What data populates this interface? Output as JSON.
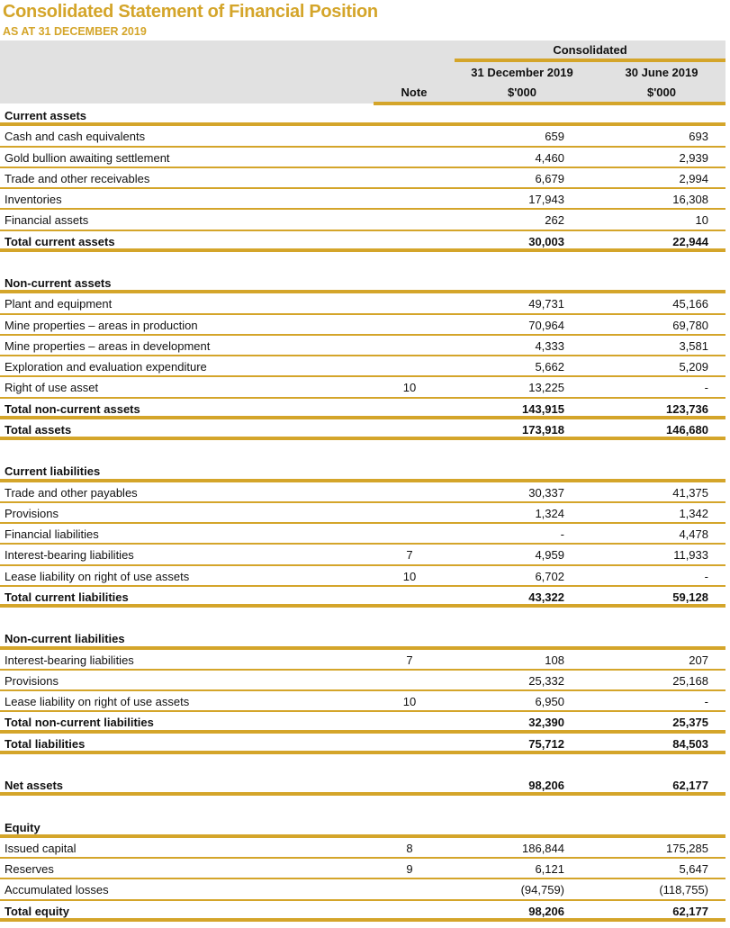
{
  "title": "Consolidated Statement of Financial Position",
  "subtitle": "AS AT 31 DECEMBER 2019",
  "colors": {
    "accent": "#D4A52A",
    "header_bg": "#e1e1e1"
  },
  "header": {
    "group": "Consolidated",
    "note": "Note",
    "col1_date": "31 December 2019",
    "col1_unit": "$'000",
    "col2_date": "30 June 2019",
    "col2_unit": "$'000"
  },
  "rows": [
    {
      "type": "heading",
      "label": "Current assets"
    },
    {
      "type": "item",
      "label": "Cash and cash equivalents",
      "note": "",
      "v1": "659",
      "v2": "693"
    },
    {
      "type": "item",
      "label": "Gold bullion awaiting settlement",
      "note": "",
      "v1": "4,460",
      "v2": "2,939"
    },
    {
      "type": "item",
      "label": "Trade and other receivables",
      "note": "",
      "v1": "6,679",
      "v2": "2,994"
    },
    {
      "type": "item",
      "label": "Inventories",
      "note": "",
      "v1": "17,943",
      "v2": "16,308"
    },
    {
      "type": "item",
      "label": "Financial assets",
      "note": "",
      "v1": "262",
      "v2": "10"
    },
    {
      "type": "total",
      "label": "Total current assets",
      "note": "",
      "v1": "30,003",
      "v2": "22,944"
    },
    {
      "type": "spacer"
    },
    {
      "type": "heading",
      "label": "Non-current assets"
    },
    {
      "type": "item",
      "label": "Plant and equipment",
      "note": "",
      "v1": "49,731",
      "v2": "45,166"
    },
    {
      "type": "item",
      "label": "Mine properties – areas in production",
      "note": "",
      "v1": "70,964",
      "v2": "69,780"
    },
    {
      "type": "item",
      "label": "Mine properties – areas in development",
      "note": "",
      "v1": "4,333",
      "v2": "3,581"
    },
    {
      "type": "item",
      "label": "Exploration and evaluation expenditure",
      "note": "",
      "v1": "5,662",
      "v2": "5,209"
    },
    {
      "type": "item",
      "label": "Right of use asset",
      "note": "10",
      "v1": "13,225",
      "v2": "-"
    },
    {
      "type": "total",
      "label": "Total non-current assets",
      "note": "",
      "v1": "143,915",
      "v2": "123,736"
    },
    {
      "type": "total",
      "label": "Total assets",
      "note": "",
      "v1": "173,918",
      "v2": "146,680"
    },
    {
      "type": "spacer"
    },
    {
      "type": "heading",
      "label": "Current liabilities"
    },
    {
      "type": "item",
      "label": "Trade and other payables",
      "note": "",
      "v1": "30,337",
      "v2": "41,375"
    },
    {
      "type": "item",
      "label": "Provisions",
      "note": "",
      "v1": "1,324",
      "v2": "1,342"
    },
    {
      "type": "item",
      "label": "Financial liabilities",
      "note": "",
      "v1": "-",
      "v2": "4,478"
    },
    {
      "type": "item",
      "label": "Interest-bearing liabilities",
      "note": "7",
      "v1": "4,959",
      "v2": "11,933"
    },
    {
      "type": "item",
      "label": "Lease liability on right of use assets",
      "note": "10",
      "v1": "6,702",
      "v2": "-"
    },
    {
      "type": "total",
      "label": "Total current liabilities",
      "note": "",
      "v1": "43,322",
      "v2": "59,128"
    },
    {
      "type": "spacer"
    },
    {
      "type": "heading",
      "label": "Non-current liabilities"
    },
    {
      "type": "item",
      "label": "Interest-bearing liabilities",
      "note": "7",
      "v1": "108",
      "v2": "207"
    },
    {
      "type": "item",
      "label": "Provisions",
      "note": "",
      "v1": "25,332",
      "v2": "25,168"
    },
    {
      "type": "item",
      "label": "Lease liability on right of use assets",
      "note": "10",
      "v1": "6,950",
      "v2": "-"
    },
    {
      "type": "total",
      "label": "Total non-current liabilities",
      "note": "",
      "v1": "32,390",
      "v2": "25,375"
    },
    {
      "type": "total",
      "label": "Total liabilities",
      "note": "",
      "v1": "75,712",
      "v2": "84,503"
    },
    {
      "type": "spacer"
    },
    {
      "type": "total",
      "label": "Net assets",
      "note": "",
      "v1": "98,206",
      "v2": "62,177"
    },
    {
      "type": "spacer"
    },
    {
      "type": "heading",
      "label": "Equity"
    },
    {
      "type": "item",
      "label": "Issued capital",
      "note": "8",
      "v1": "186,844",
      "v2": "175,285"
    },
    {
      "type": "item",
      "label": "Reserves",
      "note": "9",
      "v1": "6,121",
      "v2": "5,647"
    },
    {
      "type": "item",
      "label": "Accumulated losses",
      "note": "",
      "v1": "(94,759)",
      "v2": "(118,755)"
    },
    {
      "type": "total",
      "label": "Total equity",
      "note": "",
      "v1": "98,206",
      "v2": "62,177"
    }
  ]
}
